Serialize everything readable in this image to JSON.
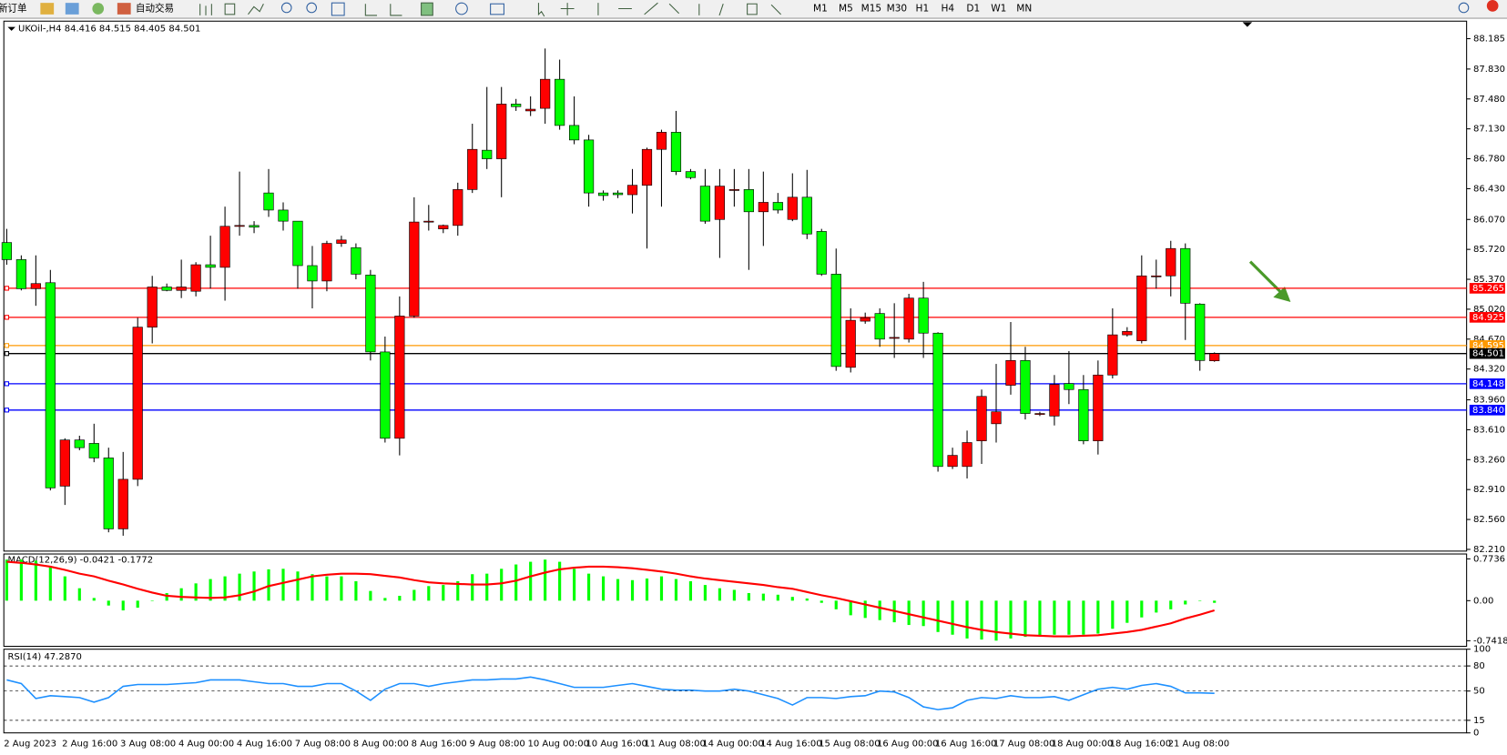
{
  "toolbar": {
    "new_order": "新订单",
    "auto_trading": "自动交易",
    "timeframes": [
      "M1",
      "M5",
      "M15",
      "M30",
      "H1",
      "H4",
      "D1",
      "W1",
      "MN"
    ]
  },
  "chart_data": [
    {
      "type": "candlestick",
      "title": "UKOil-,H4 84.416 84.515 84.405 84.501",
      "categories": [
        "2 Aug 2023",
        null,
        null,
        null,
        "2 Aug 16:00",
        null,
        null,
        null,
        "3 Aug 08:00",
        null,
        null,
        null,
        "4 Aug 00:00",
        null,
        null,
        null,
        "4 Aug 16:00",
        null,
        null,
        null,
        "7 Aug 08:00",
        null,
        null,
        null,
        "8 Aug 00:00",
        null,
        null,
        null,
        "8 Aug 16:00",
        null,
        null,
        null,
        "9 Aug 08:00",
        null,
        null,
        null,
        "10 Aug 00:00",
        null,
        null,
        null,
        "10 Aug 16:00",
        null,
        null,
        null,
        "11 Aug 08:00",
        null,
        null,
        null,
        "14 Aug 00:00",
        null,
        null,
        null,
        "14 Aug 16:00",
        null,
        null,
        null,
        "15 Aug 08:00",
        null,
        null,
        null,
        "16 Aug 00:00",
        null,
        null,
        null,
        "16 Aug 16:00",
        null,
        null,
        null,
        "17 Aug 08:00",
        null,
        null,
        null,
        "18 Aug 00:00",
        null,
        null,
        null,
        "18 Aug 16:00",
        null,
        null,
        null,
        "21 Aug 08:00",
        null,
        null,
        null
      ],
      "open": [
        85.8,
        85.6,
        85.26,
        85.33,
        82.95,
        83.49,
        83.45,
        83.28,
        82.45,
        83.03,
        84.81,
        85.28,
        85.24,
        85.23,
        85.54,
        85.51,
        85.99,
        86.0,
        86.38,
        86.18,
        86.05,
        85.53,
        85.35,
        85.79,
        85.74,
        85.42,
        84.52,
        83.51,
        84.94,
        86.04,
        85.96,
        86.0,
        86.42,
        86.88,
        86.78,
        87.42,
        87.34,
        87.37,
        87.71,
        87.17,
        87.0,
        86.38,
        86.38,
        86.36,
        86.47,
        86.89,
        87.09,
        86.63,
        86.46,
        86.07,
        86.42,
        86.42,
        86.16,
        86.27,
        86.07,
        86.33,
        85.93,
        85.43,
        84.34,
        84.88,
        84.97,
        84.69,
        84.67,
        85.15,
        84.74,
        83.18,
        83.18,
        83.48,
        83.68,
        84.13,
        84.42,
        83.8,
        83.77,
        84.15,
        84.08,
        83.48,
        84.25,
        84.72,
        84.65,
        85.41,
        85.41,
        85.73,
        85.08,
        84.416
      ],
      "high": [
        85.96,
        85.65,
        85.65,
        85.48,
        83.51,
        83.54,
        83.68,
        83.4,
        83.35,
        84.92,
        85.41,
        85.32,
        85.6,
        85.57,
        85.88,
        86.22,
        86.63,
        86.05,
        86.66,
        86.27,
        86.05,
        85.76,
        85.82,
        85.88,
        85.79,
        85.48,
        84.7,
        85.17,
        86.33,
        86.24,
        86.01,
        86.5,
        87.19,
        87.62,
        87.62,
        87.48,
        87.51,
        88.07,
        87.94,
        87.51,
        87.06,
        86.41,
        86.41,
        86.66,
        86.91,
        87.12,
        87.34,
        86.66,
        86.66,
        86.66,
        86.66,
        86.66,
        86.63,
        86.38,
        86.61,
        86.65,
        85.96,
        85.73,
        85.03,
        84.98,
        85.03,
        85.09,
        85.2,
        85.34,
        84.75,
        83.4,
        83.6,
        84.08,
        84.38,
        84.87,
        84.58,
        83.82,
        84.25,
        84.53,
        84.25,
        84.42,
        85.03,
        84.81,
        85.65,
        85.6,
        85.82,
        85.79,
        85.09,
        84.515
      ],
      "low": [
        85.54,
        85.24,
        85.06,
        82.9,
        82.73,
        83.37,
        83.23,
        82.41,
        82.37,
        82.95,
        84.62,
        85.23,
        85.15,
        85.17,
        85.26,
        85.12,
        85.88,
        85.91,
        86.1,
        85.94,
        85.26,
        85.03,
        85.23,
        85.75,
        85.37,
        84.42,
        83.46,
        83.31,
        84.92,
        85.94,
        85.91,
        85.88,
        86.38,
        86.66,
        86.33,
        87.34,
        87.28,
        87.19,
        87.12,
        86.95,
        86.22,
        86.29,
        86.32,
        86.14,
        85.73,
        86.22,
        86.59,
        86.54,
        86.02,
        85.62,
        86.22,
        85.48,
        85.76,
        86.14,
        86.05,
        85.84,
        85.41,
        84.3,
        84.28,
        84.85,
        84.58,
        84.45,
        84.63,
        84.45,
        83.12,
        83.15,
        83.04,
        83.21,
        83.46,
        84.02,
        83.73,
        83.77,
        83.66,
        83.91,
        83.44,
        83.32,
        84.21,
        84.7,
        84.62,
        85.26,
        85.17,
        84.66,
        84.3,
        84.405
      ],
      "close": [
        85.6,
        85.26,
        85.32,
        82.93,
        83.49,
        83.4,
        83.28,
        82.45,
        83.03,
        84.81,
        85.28,
        85.24,
        85.28,
        85.54,
        85.51,
        85.99,
        86.0,
        85.98,
        86.18,
        86.05,
        85.53,
        85.35,
        85.79,
        85.83,
        85.43,
        84.52,
        83.51,
        84.94,
        86.04,
        86.05,
        86.0,
        86.42,
        86.89,
        86.78,
        87.42,
        87.39,
        87.36,
        87.71,
        87.17,
        87.0,
        86.38,
        86.35,
        86.36,
        86.47,
        86.89,
        87.09,
        86.63,
        86.56,
        86.05,
        86.46,
        86.42,
        86.16,
        86.27,
        86.18,
        86.33,
        85.9,
        85.43,
        84.35,
        84.89,
        84.92,
        84.67,
        84.69,
        85.15,
        84.74,
        83.18,
        83.31,
        83.46,
        84.0,
        83.82,
        84.42,
        83.8,
        83.8,
        84.14,
        84.08,
        83.48,
        84.25,
        84.72,
        84.76,
        85.41,
        85.41,
        85.73,
        85.09,
        84.42,
        84.501
      ],
      "up_color": "#ff0000",
      "down_color": "#00ff00",
      "wick_color": "#000000",
      "ylim": [
        82.19,
        88.39
      ],
      "yticks": [
        88.185,
        {
          "value": 87.83,
          "label": "87.830"
        },
        {
          "value": 87.48,
          "label": "87.480"
        },
        {
          "value": 87.13,
          "label": "87.130"
        },
        {
          "value": 86.78,
          "label": "86.780"
        },
        {
          "value": 86.43,
          "label": "86.430"
        },
        {
          "value": 86.07,
          "label": "86.070"
        },
        {
          "value": 85.72,
          "label": "85.720"
        },
        {
          "value": 85.37,
          "label": "85.370"
        },
        {
          "value": 85.02,
          "label": "85.020"
        },
        {
          "value": 84.67,
          "label": "84.670"
        },
        {
          "value": 84.32,
          "label": "84.320"
        },
        {
          "value": 83.96,
          "label": "83.960"
        },
        {
          "value": 83.61,
          "label": "83.610"
        },
        {
          "value": 83.26,
          "label": "83.260"
        },
        {
          "value": 82.91,
          "label": "82.910"
        },
        {
          "value": 82.56,
          "label": "82.560"
        },
        {
          "value": 82.21,
          "label": "82.210"
        }
      ],
      "hlines": {
        "values": [
          85.265,
          84.925,
          84.595,
          84.501,
          84.148,
          83.84
        ],
        "value_labels": [
          "85.265",
          "84.925",
          "84.595",
          "84.501",
          "84.148",
          "83.840"
        ],
        "colors": [
          "#ff0000",
          "#ff0000",
          "#ff9900",
          "#000000",
          "#0000ff",
          "#0000ff"
        ]
      }
    },
    {
      "type": "macd",
      "title": "MACD(12,26,9) -0.0421 -0.1772",
      "histogram": {
        "color": "#00ff00",
        "values": [
          0.76,
          0.76,
          0.74,
          0.63,
          0.45,
          0.23,
          0.05,
          -0.09,
          -0.18,
          -0.13,
          0,
          0.14,
          0.23,
          0.32,
          0.4,
          0.45,
          0.5,
          0.54,
          0.58,
          0.59,
          0.54,
          0.49,
          0.45,
          0.45,
          0.36,
          0.18,
          0.05,
          0.09,
          0.2,
          0.27,
          0.29,
          0.36,
          0.49,
          0.5,
          0.59,
          0.67,
          0.72,
          0.76,
          0.72,
          0.59,
          0.5,
          0.45,
          0.4,
          0.38,
          0.41,
          0.45,
          0.4,
          0.36,
          0.29,
          0.23,
          0.2,
          0.14,
          0.13,
          0.11,
          0.07,
          0.04,
          -0.04,
          -0.16,
          -0.27,
          -0.32,
          -0.36,
          -0.4,
          -0.45,
          -0.47,
          -0.58,
          -0.63,
          -0.7,
          -0.72,
          -0.74,
          -0.7,
          -0.67,
          -0.65,
          -0.63,
          -0.63,
          -0.63,
          -0.61,
          -0.52,
          -0.41,
          -0.31,
          -0.22,
          -0.16,
          -0.07,
          0,
          -0.04
        ]
      },
      "signal": {
        "color": "#ff0000",
        "values": [
          0.72,
          0.7,
          0.67,
          0.63,
          0.57,
          0.5,
          0.45,
          0.37,
          0.3,
          0.22,
          0.15,
          0.09,
          0.07,
          0.06,
          0.05,
          0.06,
          0.1,
          0.17,
          0.27,
          0.33,
          0.39,
          0.45,
          0.48,
          0.5,
          0.5,
          0.49,
          0.46,
          0.43,
          0.38,
          0.34,
          0.32,
          0.31,
          0.3,
          0.3,
          0.32,
          0.37,
          0.45,
          0.52,
          0.58,
          0.61,
          0.63,
          0.63,
          0.62,
          0.6,
          0.57,
          0.54,
          0.5,
          0.45,
          0.41,
          0.38,
          0.35,
          0.32,
          0.29,
          0.25,
          0.22,
          0.16,
          0.1,
          0.05,
          -0.01,
          -0.07,
          -0.13,
          -0.19,
          -0.25,
          -0.31,
          -0.37,
          -0.43,
          -0.49,
          -0.54,
          -0.58,
          -0.61,
          -0.64,
          -0.65,
          -0.66,
          -0.66,
          -0.65,
          -0.64,
          -0.61,
          -0.58,
          -0.54,
          -0.48,
          -0.42,
          -0.33,
          -0.26,
          -0.18
        ]
      },
      "ylim": [
        -0.845,
        0.864
      ],
      "yticks": [
        0.7736,
        {
          "value": 0,
          "label": "0.00"
        },
        -0.7418
      ]
    },
    {
      "type": "line",
      "title": "RSI(14) 47.2870",
      "color": "#1e90ff",
      "values": [
        63.3,
        58.9,
        41.1,
        44.4,
        43.3,
        42.2,
        36.7,
        42.2,
        55.6,
        57.8,
        57.8,
        57.8,
        58.9,
        60.0,
        63.3,
        63.3,
        63.3,
        61.1,
        58.9,
        58.9,
        55.6,
        55.6,
        58.9,
        58.9,
        50.0,
        38.9,
        52.2,
        58.9,
        58.9,
        55.6,
        58.9,
        61.1,
        63.3,
        63.3,
        64.4,
        64.4,
        66.7,
        63.3,
        58.9,
        54.4,
        54.4,
        54.4,
        56.7,
        58.9,
        55.6,
        52.2,
        51.1,
        51.1,
        50.0,
        50.0,
        52.2,
        50.0,
        45.6,
        41.1,
        33.3,
        42.2,
        42.2,
        41.1,
        43.3,
        44.4,
        50.0,
        48.9,
        42.2,
        31.1,
        27.8,
        30.0,
        38.9,
        42.2,
        41.1,
        44.4,
        42.2,
        42.2,
        43.3,
        38.9,
        45.6,
        52.2,
        54.4,
        52.2,
        56.7,
        58.9,
        55.6,
        47.8,
        47.8,
        47.3
      ],
      "levels": [
        80,
        50,
        15
      ],
      "ylim": [
        0,
        100
      ],
      "yticks": [
        100,
        80,
        50,
        15,
        0
      ]
    }
  ]
}
